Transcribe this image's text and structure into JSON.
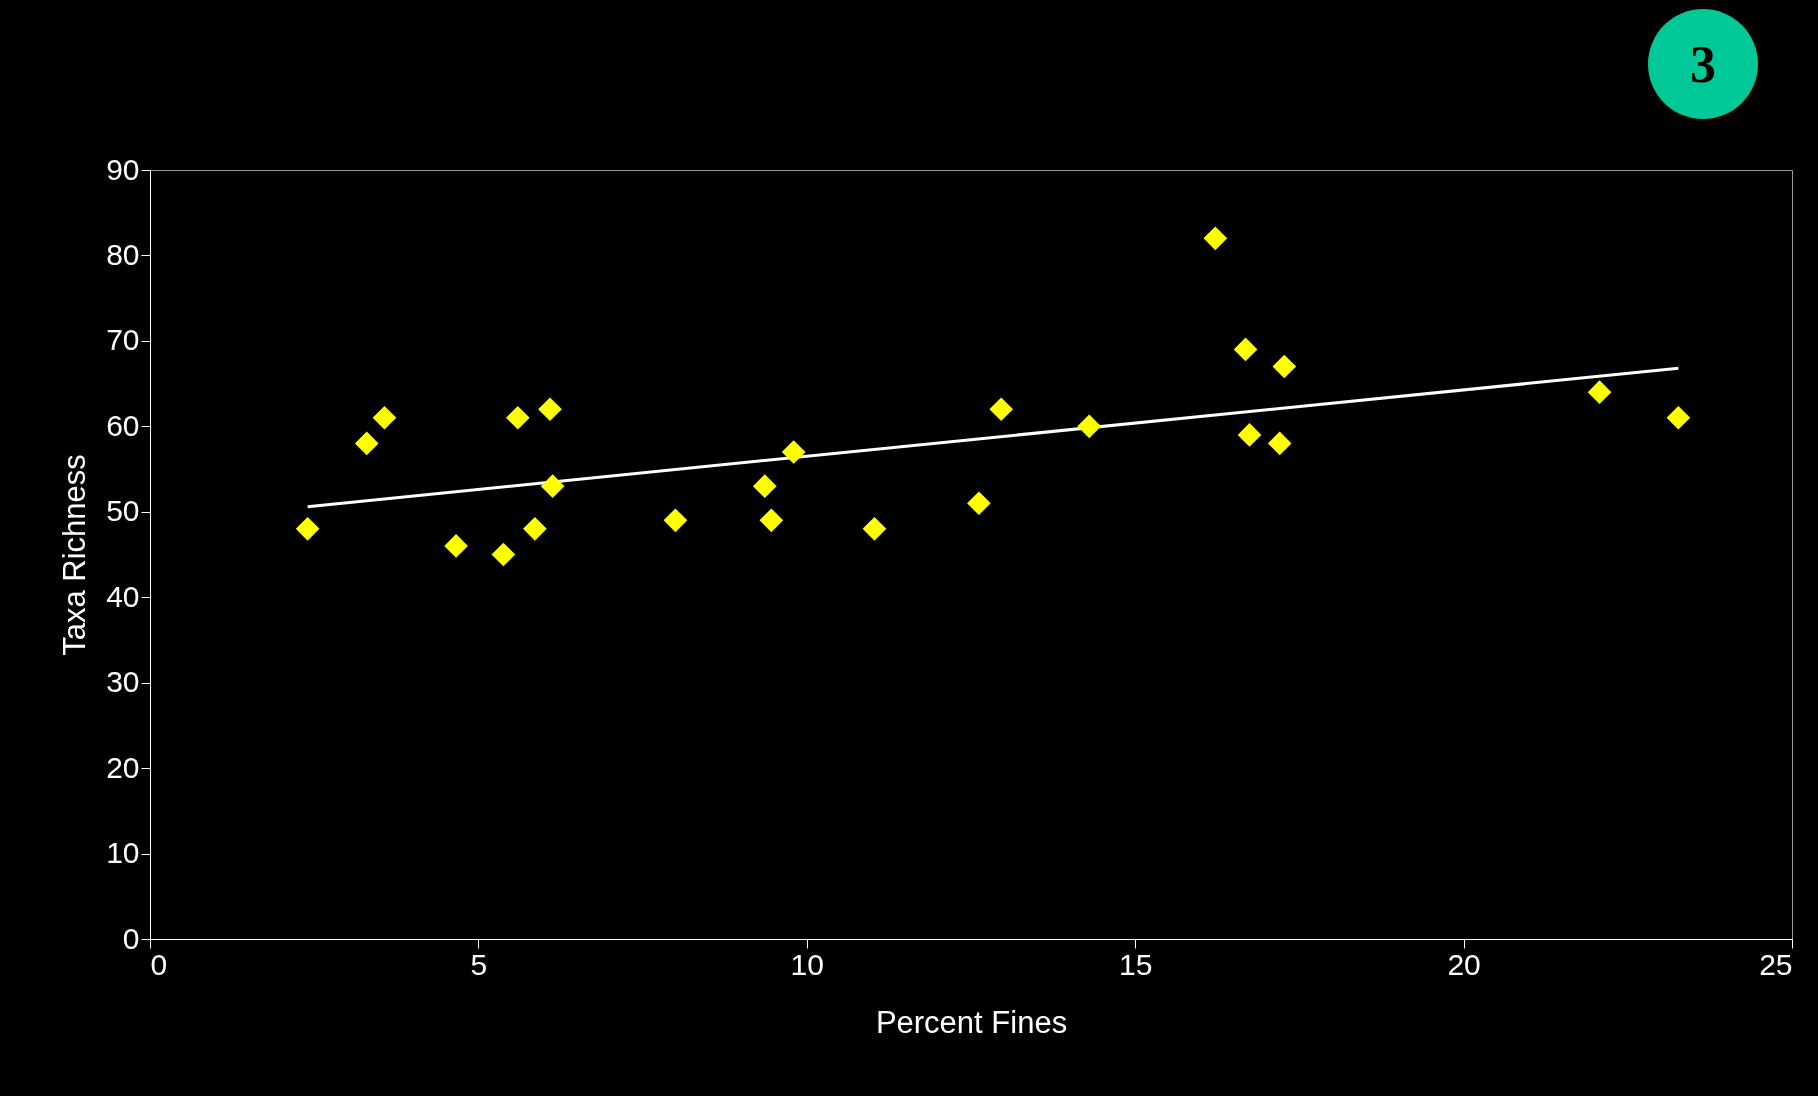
{
  "chart_data": {
    "type": "scatter",
    "xlabel": "Percent Fines",
    "ylabel": "Taxa Richness",
    "annotations": [
      "3"
    ],
    "xlim": [
      0,
      25
    ],
    "xticks": [
      0,
      5,
      10,
      15,
      20,
      25
    ],
    "ylim": [
      0,
      90
    ],
    "yticks": [
      0,
      10,
      20,
      30,
      40,
      50,
      60,
      70,
      80,
      90
    ],
    "grid": false,
    "marker": "diamond",
    "series": [
      {
        "color": "#ffff00",
        "x": [
          2.4,
          3.3,
          3.57,
          4.66,
          5.38,
          5.6,
          5.86,
          6.09,
          6.13,
          8.0,
          9.36,
          9.46,
          9.8,
          11.03,
          12.62,
          12.96,
          14.3,
          16.22,
          16.68,
          16.74,
          17.2,
          17.27,
          22.07,
          23.27
        ],
        "values": [
          48,
          58,
          61,
          46,
          45,
          61,
          48,
          62,
          53,
          49,
          53,
          49,
          57,
          48,
          51,
          62,
          60,
          82,
          69,
          59,
          58,
          67,
          64,
          61
        ]
      },
      {
        "type": "line",
        "marker": "none",
        "color": "#ffffff",
        "x": [
          2.4,
          23.27
        ],
        "values": [
          50.6,
          66.8
        ]
      }
    ]
  }
}
